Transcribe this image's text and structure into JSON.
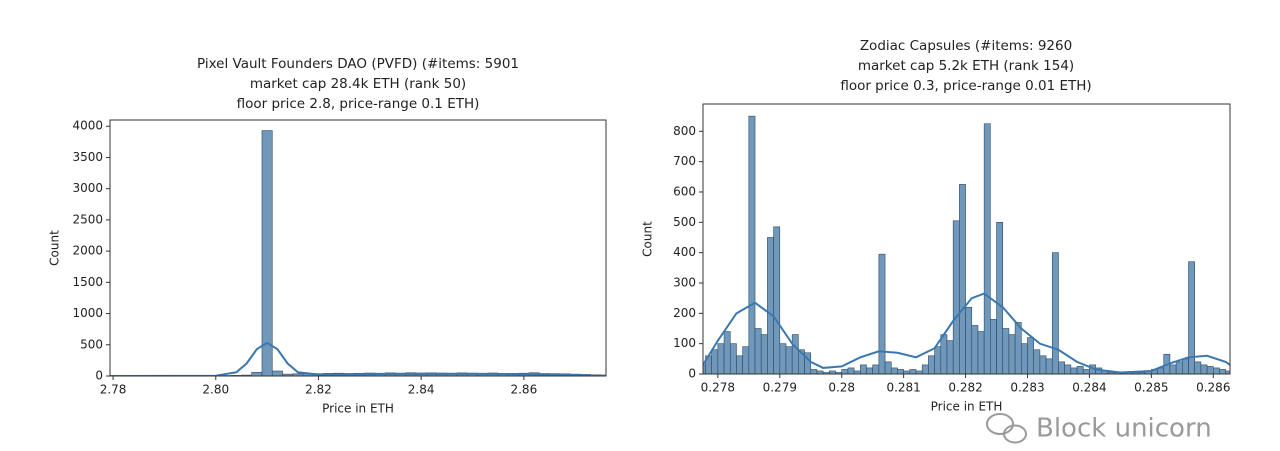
{
  "chart_data": [
    {
      "type": "histogram",
      "title": [
        "Pixel Vault Founders DAO (PVFD) (#items: 5901",
        "market cap 28.4k ETH (rank 50)",
        "floor price 2.8, price-range 0.1 ETH)"
      ],
      "xlabel": "Price in ETH",
      "ylabel": "Count",
      "color": "#6f98bb",
      "edge_color": "#2e4a63",
      "kde_color": "#3a78b0",
      "xlim": [
        2.7794,
        2.876
      ],
      "ylim": [
        0,
        4100
      ],
      "xticks": [
        2.78,
        {
          "value": 2.8,
          "label": "2.80"
        },
        2.82,
        2.84,
        2.86
      ],
      "yticks": [
        0,
        500,
        1000,
        1500,
        2000,
        2500,
        3000,
        3500,
        4000
      ],
      "bins": [
        2.779,
        2.781,
        2.783,
        2.785,
        2.787,
        2.789,
        2.791,
        2.793,
        2.795,
        2.797,
        2.799,
        2.801,
        2.803,
        2.805,
        2.807,
        2.809,
        2.811,
        2.813,
        2.815,
        2.817,
        2.819,
        2.821,
        2.823,
        2.825,
        2.827,
        2.829,
        2.831,
        2.833,
        2.835,
        2.837,
        2.839,
        2.841,
        2.843,
        2.845,
        2.847,
        2.849,
        2.851,
        2.853,
        2.855,
        2.857,
        2.859,
        2.861,
        2.863,
        2.865,
        2.867,
        2.869,
        2.871,
        2.873,
        2.875,
        2.877
      ],
      "values": [
        2,
        2,
        3,
        2,
        3,
        3,
        4,
        3,
        4,
        5,
        6,
        8,
        10,
        15,
        60,
        3930,
        80,
        30,
        35,
        40,
        38,
        42,
        45,
        40,
        44,
        48,
        45,
        50,
        46,
        52,
        48,
        50,
        47,
        45,
        50,
        46,
        44,
        48,
        42,
        40,
        45,
        52,
        40,
        38,
        35,
        30,
        25,
        20,
        15
      ],
      "kde": {
        "x": [
          2.7794,
          2.8,
          2.804,
          2.806,
          2.808,
          2.81,
          2.812,
          2.814,
          2.816,
          2.82,
          2.83,
          2.84,
          2.85,
          2.86,
          2.876
        ],
        "values": [
          0,
          5,
          60,
          200,
          430,
          530,
          430,
          200,
          60,
          25,
          30,
          35,
          35,
          30,
          5
        ]
      }
    },
    {
      "type": "histogram",
      "title": [
        "Zodiac Capsules (#items: 9260",
        "market cap 5.2k ETH (rank 154)",
        "floor price 0.3, price-range 0.01 ETH)"
      ],
      "xlabel": "Price in ETH",
      "ylabel": "Count",
      "color": "#6f98bb",
      "edge_color": "#2e4a63",
      "kde_color": "#3a78b0",
      "xlim": [
        0.27776,
        0.28627
      ],
      "ylim": [
        0,
        890
      ],
      "xticks": [
        0.278,
        0.279,
        0.28,
        0.281,
        0.282,
        0.283,
        0.284,
        0.285,
        0.286
      ],
      "yticks": [
        0,
        100,
        200,
        300,
        400,
        500,
        600,
        700,
        800
      ],
      "bins": [
        0.2777,
        0.2778,
        0.2779,
        0.278,
        0.2781,
        0.2782,
        0.2783,
        0.2784,
        0.2785,
        0.2786,
        0.2787,
        0.2788,
        0.2789,
        0.279,
        0.2791,
        0.2792,
        0.2793,
        0.2794,
        0.2795,
        0.2796,
        0.2797,
        0.2798,
        0.2799,
        0.28,
        0.2801,
        0.2802,
        0.2803,
        0.2804,
        0.2805,
        0.2806,
        0.2807,
        0.2808,
        0.2809,
        0.281,
        0.2811,
        0.2812,
        0.2813,
        0.2814,
        0.2815,
        0.2816,
        0.2817,
        0.2818,
        0.2819,
        0.282,
        0.2821,
        0.2822,
        0.2823,
        0.2824,
        0.2825,
        0.2826,
        0.2827,
        0.2828,
        0.2829,
        0.283,
        0.2831,
        0.2832,
        0.2833,
        0.2834,
        0.2835,
        0.2836,
        0.2837,
        0.2838,
        0.2839,
        0.284,
        0.2841,
        0.2842,
        0.2843,
        0.2844,
        0.2845,
        0.2846,
        0.2847,
        0.2848,
        0.2849,
        0.285,
        0.2851,
        0.2852,
        0.2853,
        0.2854,
        0.2855,
        0.2856,
        0.2857,
        0.2858,
        0.2859,
        0.286,
        0.2861,
        0.2862,
        0.2863
      ],
      "values": [
        30,
        60,
        80,
        100,
        140,
        100,
        60,
        90,
        850,
        150,
        130,
        450,
        485,
        100,
        90,
        130,
        80,
        70,
        15,
        10,
        5,
        10,
        5,
        15,
        20,
        10,
        30,
        20,
        30,
        395,
        40,
        20,
        15,
        10,
        15,
        10,
        30,
        60,
        90,
        130,
        110,
        505,
        625,
        220,
        160,
        140,
        825,
        180,
        500,
        150,
        130,
        170,
        100,
        120,
        80,
        60,
        50,
        400,
        40,
        30,
        20,
        25,
        15,
        30,
        20,
        10,
        5,
        5,
        5,
        5,
        5,
        5,
        10,
        15,
        20,
        65,
        30,
        40,
        50,
        370,
        40,
        30,
        25,
        20,
        15,
        10
      ],
      "kde": {
        "x": [
          0.27776,
          0.278,
          0.2783,
          0.2786,
          0.2789,
          0.2792,
          0.2795,
          0.2797,
          0.28,
          0.2803,
          0.2806,
          0.2809,
          0.2812,
          0.2815,
          0.2818,
          0.2821,
          0.2823,
          0.2826,
          0.2829,
          0.2832,
          0.2835,
          0.2838,
          0.2841,
          0.2845,
          0.285,
          0.2853,
          0.2856,
          0.2859,
          0.2862,
          0.28627
        ],
        "values": [
          30,
          110,
          200,
          235,
          190,
          100,
          40,
          20,
          25,
          55,
          75,
          70,
          55,
          85,
          175,
          250,
          265,
          220,
          150,
          100,
          80,
          40,
          15,
          5,
          10,
          35,
          55,
          60,
          40,
          30
        ]
      }
    }
  ],
  "watermark": "Block unicorn"
}
